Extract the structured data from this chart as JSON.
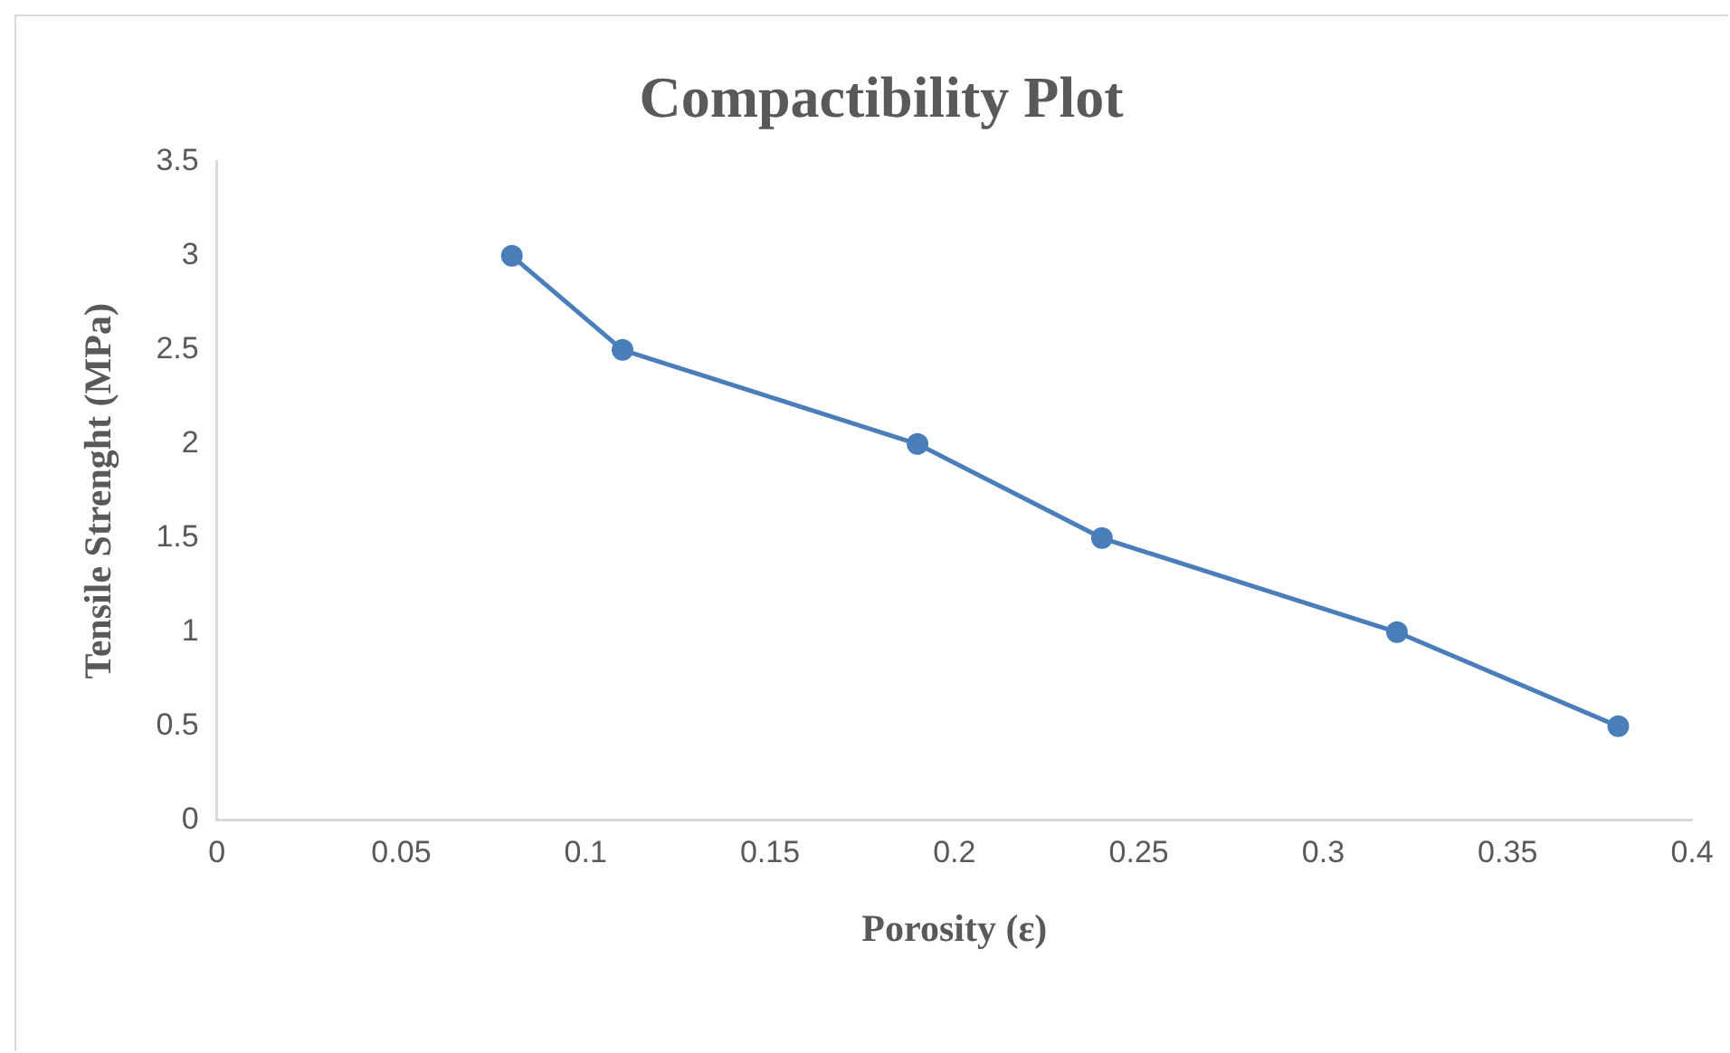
{
  "chart_data": {
    "type": "line",
    "title": "Compactibility Plot",
    "xlabel": "Porosity (ε)",
    "ylabel": "Tensile Strenght (MPa)",
    "x": [
      0.08,
      0.11,
      0.19,
      0.24,
      0.32,
      0.38
    ],
    "series": [
      {
        "color": "#4a7ebb",
        "values": [
          3,
          2.5,
          2,
          1.5,
          1,
          0.5
        ]
      }
    ],
    "xlim": [
      0,
      0.4
    ],
    "xticks": [
      0,
      0.05,
      0.1,
      0.15,
      0.2,
      0.25,
      0.3,
      0.35,
      0.4
    ],
    "ylim": [
      0,
      3.5
    ],
    "yticks": [
      0,
      0.5,
      1,
      1.5,
      2,
      2.5,
      3,
      3.5
    ],
    "grid": false,
    "legend": false,
    "marker": "circle",
    "line_style": "solid"
  }
}
